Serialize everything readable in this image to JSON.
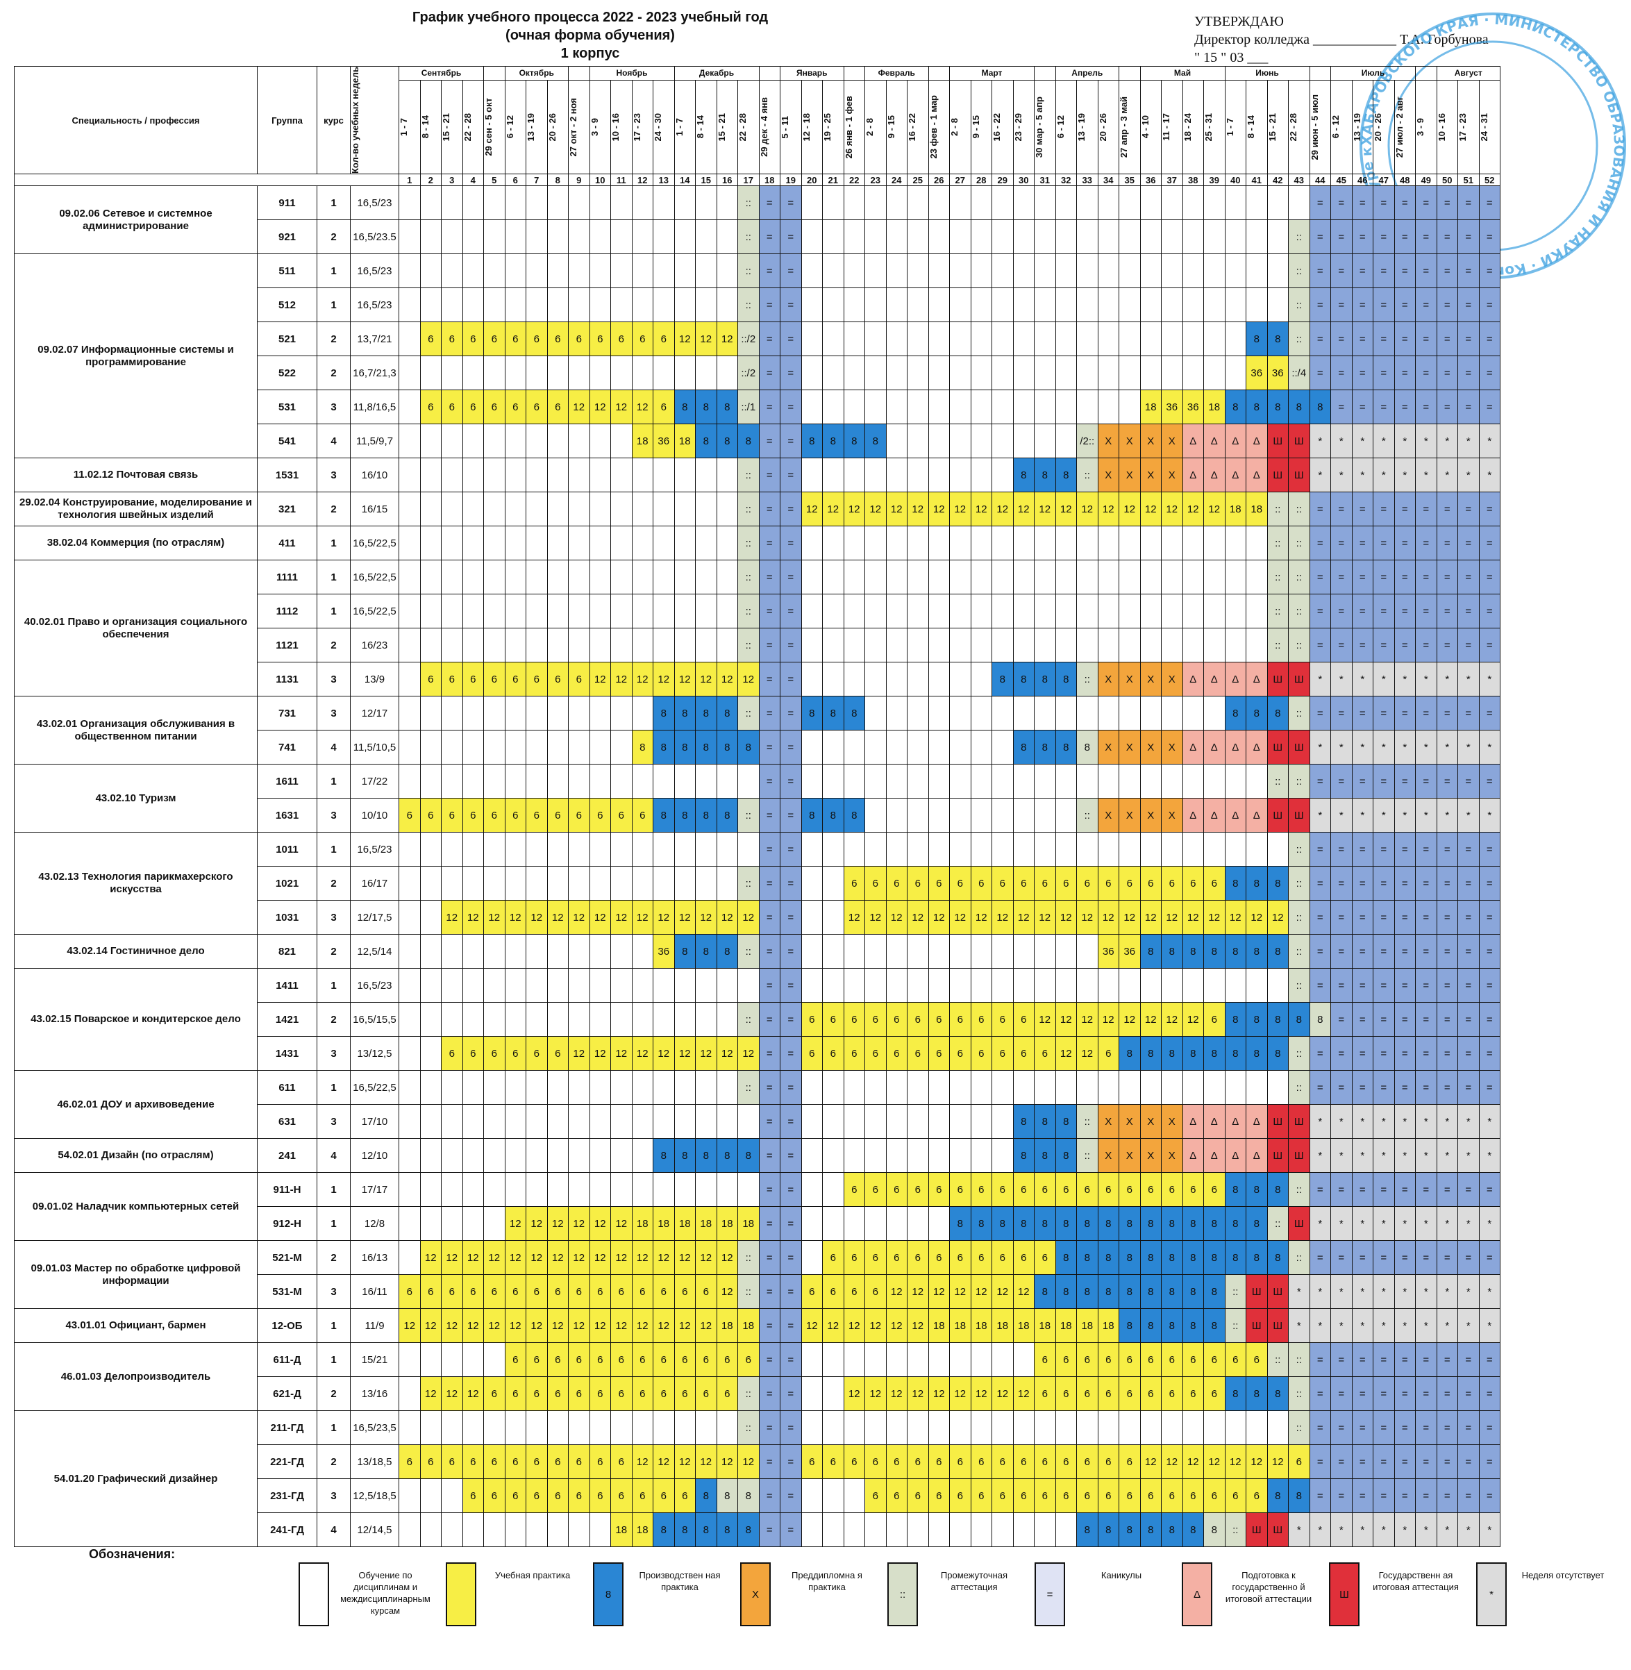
{
  "title": {
    "line1": "График учебного процесса  2022 - 2023 учебный год",
    "line2": "(очная форма обучения)",
    "line3": "1 корпус"
  },
  "approval": {
    "label": "УТВЕРЖДАЮ",
    "line2": "Директор колледжа ____________ Т.А. Горбунова",
    "line3": "\" 15 \" 03 ___"
  },
  "headers": {
    "specialty": "Специальность / профессия",
    "group": "Группа",
    "course": "курс",
    "weeks": "Кол-во учебных недель"
  },
  "months": [
    {
      "name": "Сентябрь",
      "span": 4
    },
    {
      "name": "",
      "span": 1
    },
    {
      "name": "Октябрь",
      "span": 3
    },
    {
      "name": "",
      "span": 1
    },
    {
      "name": "Ноябрь",
      "span": 4
    },
    {
      "name": "Декабрь",
      "span": 4
    },
    {
      "name": "",
      "span": 1
    },
    {
      "name": "Январь",
      "span": 3
    },
    {
      "name": "",
      "span": 1
    },
    {
      "name": "Февраль",
      "span": 3
    },
    {
      "name": "",
      "span": 1
    },
    {
      "name": "Март",
      "span": 4
    },
    {
      "name": "",
      "span": 1
    },
    {
      "name": "Апрель",
      "span": 3
    },
    {
      "name": "",
      "span": 1
    },
    {
      "name": "Май",
      "span": 4
    },
    {
      "name": "Июнь",
      "span": 4
    },
    {
      "name": "",
      "span": 1
    },
    {
      "name": "Июль",
      "span": 4
    },
    {
      "name": "",
      "span": 1
    },
    {
      "name": "Август",
      "span": 4
    }
  ],
  "weeks": [
    "1 - 7",
    "8 - 14",
    "15 - 21",
    "22 - 28",
    "29 сен - 5 окт",
    "6 - 12",
    "13 - 19",
    "20 - 26",
    "27 окт - 2 ноя",
    "3 - 9",
    "10 - 16",
    "17 - 23",
    "24 - 30",
    "1 - 7",
    "8 - 14",
    "15 - 21",
    "22 - 28",
    "29 дек - 4 янв",
    "5 - 11",
    "12 - 18",
    "19 - 25",
    "26 янв - 1 фев",
    "2 - 8",
    "9 - 15",
    "16 - 22",
    "23 фев - 1 мар",
    "2 - 8",
    "9 - 15",
    "16 - 22",
    "23 - 29",
    "30 мар - 5 апр",
    "6 - 12",
    "13 - 19",
    "20 - 26",
    "27 апр - 3 май",
    "4 - 10",
    "11 - 17",
    "18 - 24",
    "25 - 31",
    "1 - 7",
    "8 - 14",
    "15 - 21",
    "22 - 28",
    "29 июн - 5 июл",
    "6 - 12",
    "13 - 19",
    "20 - 26",
    "27 июл - 2 авг",
    "3 - 9",
    "10 - 16",
    "17 - 23",
    "24 - 31"
  ],
  "week_numbers": [
    "1",
    "2",
    "3",
    "4",
    "5",
    "6",
    "7",
    "8",
    "9",
    "10",
    "11",
    "12",
    "13",
    "14",
    "15",
    "16",
    "17",
    "18",
    "19",
    "20",
    "21",
    "22",
    "23",
    "24",
    "25",
    "26",
    "27",
    "28",
    "29",
    "30",
    "31",
    "32",
    "33",
    "34",
    "35",
    "36",
    "37",
    "38",
    "39",
    "40",
    "41",
    "42",
    "43",
    "44",
    "45",
    "46",
    "47",
    "48",
    "49",
    "50",
    "51",
    "52"
  ],
  "specialties": [
    {
      "name": "09.02.06 Сетевое и системное администрирование",
      "groups": [
        {
          "group": "911",
          "course": "1",
          "weeks": "16,5/23",
          "cells": "17:g:::;18:v:=;19:v:=;44-52:v:="
        },
        {
          "group": "921",
          "course": "2",
          "weeks": "16,5/23.5",
          "cells": "17:g:::;18:v:=;19:v:=;43:g:::;44-52:v:="
        }
      ]
    },
    {
      "name": "09.02.07 Информационные системы и программирование",
      "groups": [
        {
          "group": "511",
          "course": "1",
          "weeks": "16,5/23",
          "cells": "17:g:::;18:v:=;19:v:=;43:g:::;44-52:v:="
        },
        {
          "group": "512",
          "course": "1",
          "weeks": "16,5/23",
          "cells": "17:g:::;18:v:=;19:v:=;43:g:::;44-52:v:="
        },
        {
          "group": "521",
          "course": "2",
          "weeks": "13,7/21",
          "cells": "2-13:y:6;14-16:y:12;17:g:::/2;18:v:=;19:v:=;41:b:8;42:b:8;43:g:::;44-52:v:="
        },
        {
          "group": "522",
          "course": "2",
          "weeks": "16,7/21,3",
          "cells": "17:g:::/2;18:v:=;19:v:=;41:y:36;42:y:36;43:g:::/4;44-52:v:="
        },
        {
          "group": "531",
          "course": "3",
          "weeks": "11,8/16,5",
          "cells": "2-8:y:6;9-11:y:12;12:y:12;13:y:6;14-16:b:8;17:g:::/1;18:v:=;19:v:=;36:y:18;37:y:36;38:y:36;39:y:18;40-43:b:8;44:b:8;45-52:v:="
        },
        {
          "group": "541",
          "course": "4",
          "weeks": "11,5/9,7",
          "cells": "12:y:18;13:y:36;14:y:18;15-16:b:8;17:b:8;18:v:=;19:v:=;20-23:b:8;33:g:/2::;34-37:o:Х;38-41:p:Δ;42-43:r:Ш;44-52:x:*"
        }
      ]
    },
    {
      "name": "11.02.12 Почтовая связь",
      "groups": [
        {
          "group": "1531",
          "course": "3",
          "weeks": "16/10",
          "cells": "17:g:::;18:v:=;19:v:=;30-32:b:8;33:g:::;34-37:o:Х;38-41:p:Δ;42-43:r:Ш;44-52:x:*"
        }
      ]
    },
    {
      "name": "29.02.04 Конструирование, моделирование и технология швейных изделий",
      "groups": [
        {
          "group": "321",
          "course": "2",
          "weeks": "16/15",
          "cells": "17:g:::;18:v:=;19:v:=;20-39:y:12;40-41:y:18;42:g:::;43:g:::;44-52:v:="
        }
      ]
    },
    {
      "name": "38.02.04 Коммерция (по отраслям)",
      "groups": [
        {
          "group": "411",
          "course": "1",
          "weeks": "16,5/22,5",
          "cells": "17:g:::;18:v:=;19:v:=;42:g:::;43:g:::;44-52:v:="
        }
      ]
    },
    {
      "name": "40.02.01 Право и организация социального обеспечения",
      "groups": [
        {
          "group": "1111",
          "course": "1",
          "weeks": "16,5/22,5",
          "cells": "17:g:::;18:v:=;19:v:=;42:g:::;43:g:::;44-52:v:="
        },
        {
          "group": "1112",
          "course": "1",
          "weeks": "16,5/22,5",
          "cells": "17:g:::;18:v:=;19:v:=;42:g:::;43:g:::;44-52:v:="
        },
        {
          "group": "1121",
          "course": "2",
          "weeks": "16/23",
          "cells": "17:g:::;18:v:=;19:v:=;42:g:::;43:g:::;44-52:v:="
        },
        {
          "group": "1131",
          "course": "3",
          "weeks": "13/9",
          "cells": "2-9:y:6;10-17:y:12;18:v:=;19:v:=;29-32:b:8;33:g:::;34-37:o:Х;38-41:p:Δ;42-43:r:Ш;44-52:x:*"
        }
      ]
    },
    {
      "name": "43.02.01 Организация обслуживания в общественном питании",
      "groups": [
        {
          "group": "731",
          "course": "3",
          "weeks": "12/17",
          "cells": "13-16:b:8;17:g:::;18:v:=;19:v:=;20-22:b:8;40-42:b:8;43:g:::;44-52:v:="
        },
        {
          "group": "741",
          "course": "4",
          "weeks": "11,5/10,5",
          "cells": "12:y:8;13-16:b:8;17:b:8;18:v:=;19:v:=;30:b:8;31-32:b:8;33:g:8;34-37:o:Х;38-41:p:Δ;42-43:r:Ш;44-52:x:*"
        }
      ]
    },
    {
      "name": "43.02.10 Туризм",
      "groups": [
        {
          "group": "1611",
          "course": "1",
          "weeks": "17/22",
          "cells": "18:v:=;19:v:=;42:g:::;43:g:::;44-52:v:="
        },
        {
          "group": "1631",
          "course": "3",
          "weeks": "10/10",
          "cells": "1-12:y:6;13-16:b:8;17:g:::;18:v:=;19:v:=;20-22:b:8;33:g:::;34-37:o:Х;38-41:p:Δ;42-43:r:Ш;44-52:x:*"
        }
      ]
    },
    {
      "name": "43.02.13 Технология парикмахерского искусства",
      "groups": [
        {
          "group": "1011",
          "course": "1",
          "weeks": "16,5/23",
          "cells": "18:v:=;19:v:=;43:g:::;44-52:v:="
        },
        {
          "group": "1021",
          "course": "2",
          "weeks": "16/17",
          "cells": "17:g:::;18:v:=;19:v:=;22-39:y:6;40-42:b:8;43:g:::;44-52:v:="
        },
        {
          "group": "1031",
          "course": "3",
          "weeks": "12/17,5",
          "cells": "3-17:y:12;18:v:=;19:v:=;22-42:y:12;43:g:::;44-52:v:="
        }
      ]
    },
    {
      "name": "43.02.14 Гостиничное дело",
      "groups": [
        {
          "group": "821",
          "course": "2",
          "weeks": "12,5/14",
          "cells": "13:y:36;14-16:b:8;17:g:::;18:v:=;19:v:=;34-35:y:36;36-42:b:8;43:g:::;44-52:v:="
        }
      ]
    },
    {
      "name": "43.02.15 Поварское и кондитерское дело",
      "groups": [
        {
          "group": "1411",
          "course": "1",
          "weeks": "16,5/23",
          "cells": "18:v:=;19:v:=;43:g:::;44-52:v:="
        },
        {
          "group": "1421",
          "course": "2",
          "weeks": "16,5/15,5",
          "cells": "17:g:::;18:v:=;19:v:=;20-30:y:6;31-38:y:12;39:y:6;40-43:b:8;44:g:8;45-52:v:="
        },
        {
          "group": "1431",
          "course": "3",
          "weeks": "13/12,5",
          "cells": "3-8:y:6;9-17:y:12;18:v:=;19:v:=;20-31:y:6;32-33:y:12;34:y:6;35-41:b:8;42:b:8;43:g:::;44-52:v:="
        }
      ]
    },
    {
      "name": "46.02.01 ДОУ и архивоведение",
      "groups": [
        {
          "group": "611",
          "course": "1",
          "weeks": "16,5/22,5",
          "cells": "17:g:::;18:v:=;19:v:=;43:g:::;44-52:v:="
        },
        {
          "group": "631",
          "course": "3",
          "weeks": "17/10",
          "cells": "18:v:=;19:v:=;30-32:b:8;33:g:::;34-37:o:Х;38-41:p:Δ;42-43:r:Ш;44-52:x:*"
        }
      ]
    },
    {
      "name": "54.02.01 Дизайн (по отраслям)",
      "groups": [
        {
          "group": "241",
          "course": "4",
          "weeks": "12/10",
          "cells": "13-17:b:8;18:v:=;19:v:=;30-32:b:8;33:g:::;34-37:o:Х;38-41:p:Δ;42-43:r:Ш;44-52:x:*"
        }
      ]
    },
    {
      "name": "09.01.02 Наладчик компьютерных сетей",
      "groups": [
        {
          "group": "911-Н",
          "course": "1",
          "weeks": "17/17",
          "cells": "18:v:=;19:v:=;22-39:y:6;40-42:b:8;43:g:::;44-52:v:="
        },
        {
          "group": "912-Н",
          "course": "1",
          "weeks": "12/8",
          "cells": "6-11:y:12;12-17:y:18;18:v:=;19:v:=;27-41:b:8;42:g:::;43:r:Ш;44-52:x:*"
        }
      ]
    },
    {
      "name": "09.01.03 Мастер по обработке цифровой информации",
      "groups": [
        {
          "group": "521-М",
          "course": "2",
          "weeks": "16/13",
          "cells": "2-16:y:12;17:g:::;18:v:=;19:v:=;21-31:y:6;32-42:b:8;43:g:::;44-52:v:="
        },
        {
          "group": "531-М",
          "course": "3",
          "weeks": "16/11",
          "cells": "1-15:y:6;16:y:12;17:g:::;18:v:=;19:v:=;20-23:y:6;24-30:y:12;31-39:b:8;40:g:::;41-42:r:Ш;43-52:x:*"
        },
        {
          "group": "12-ОБ",
          "course": "1",
          "weeks": "11/9",
          "cells": "1-15:y:12;16:y:18;17:y:18;18:v:=;19:v:=;20-25:y:12;26-34:y:18;35-39:b:8;40:g:::;41-42:r:Ш;43-52:x:*"
        }
      ]
    },
    {
      "name": "43.01.01 Официант, бармен",
      "groups": []
    },
    {
      "name": "46.01.03 Делопроизводитель",
      "groups": [
        {
          "group": "611-Д",
          "course": "1",
          "weeks": "15/21",
          "cells": "6-17:y:6;18:v:=;19:v:=;31-41:y:6;42:g:::;43:g:::;44-52:v:="
        },
        {
          "group": "621-Д",
          "course": "2",
          "weeks": "13/16",
          "cells": "2-4:y:12;5-16:y:6;17:g:::;18:v:=;19:v:=;22-30:y:12;31-39:y:6;40-42:b:8;43:g:::;44-52:v:="
        }
      ]
    },
    {
      "name": "54.01.20 Графический дизайнер",
      "groups": [
        {
          "group": "211-ГД",
          "course": "1",
          "weeks": "16,5/23,5",
          "cells": "17:g:::;18:v:=;19:v:=;43:g:::;44-52:v:="
        },
        {
          "group": "221-ГД",
          "course": "2",
          "weeks": "13/18,5",
          "cells": "1-11:y:6;12-17:y:12;18:v:=;19:v:=;20-35:y:6;36-42:y:12;43:y:6;44-52:v:="
        },
        {
          "group": "231-ГД",
          "course": "3",
          "weeks": "12,5/18,5",
          "cells": "4-13:y:6;14:y:6;15:b:8;16:g:8;17:g:8;18:v:=;19:v:=;23-40:y:6;41:y:6;42:b:8;43:b:8;44-52:v:="
        },
        {
          "group": "241-ГД",
          "course": "4",
          "weeks": "12/14,5",
          "cells": "11-12:y:18;13-17:b:8;18:v:=;19:v:=;33:b:8;34-38:b:8;39:g:8;40:g:::;41-42:r:Ш;43-52:x:*"
        }
      ]
    }
  ],
  "legend": {
    "title": "Обозначения:",
    "items": [
      {
        "color": "#ffffff",
        "symbol": "",
        "label": "Обучение по дисциплинам и междисциплинарным курсам"
      },
      {
        "color": "#f7ee45",
        "symbol": "",
        "label": "Учебная практика"
      },
      {
        "color": "#2a86d4",
        "symbol": "8",
        "label": "Производствен ная практика"
      },
      {
        "color": "#f3a53c",
        "symbol": "Х",
        "label": "Преддипломна я практика"
      },
      {
        "color": "#d7dfc9",
        "symbol": "::",
        "label": "Промежуточная аттестация"
      },
      {
        "color": "#dfe3f4",
        "symbol": "=",
        "label": "Каникулы"
      },
      {
        "color": "#f4b0a4",
        "symbol": "Δ",
        "label": "Подготовка к государственно й итоговой аттестации"
      },
      {
        "color": "#e0303a",
        "symbol": "Ш",
        "label": "Государственн ая итоговая аттестация"
      },
      {
        "color": "#dcdcdc",
        "symbol": "*",
        "label": "Неделя отсутствует"
      }
    ]
  },
  "stamp_text": "ХАБАРОВСКОГО КРАЯ · МИНИСТЕРСТВО ОБРАЗОВАНИЯ И НАУКИ · Комсомольский-на-Амуре колледж"
}
